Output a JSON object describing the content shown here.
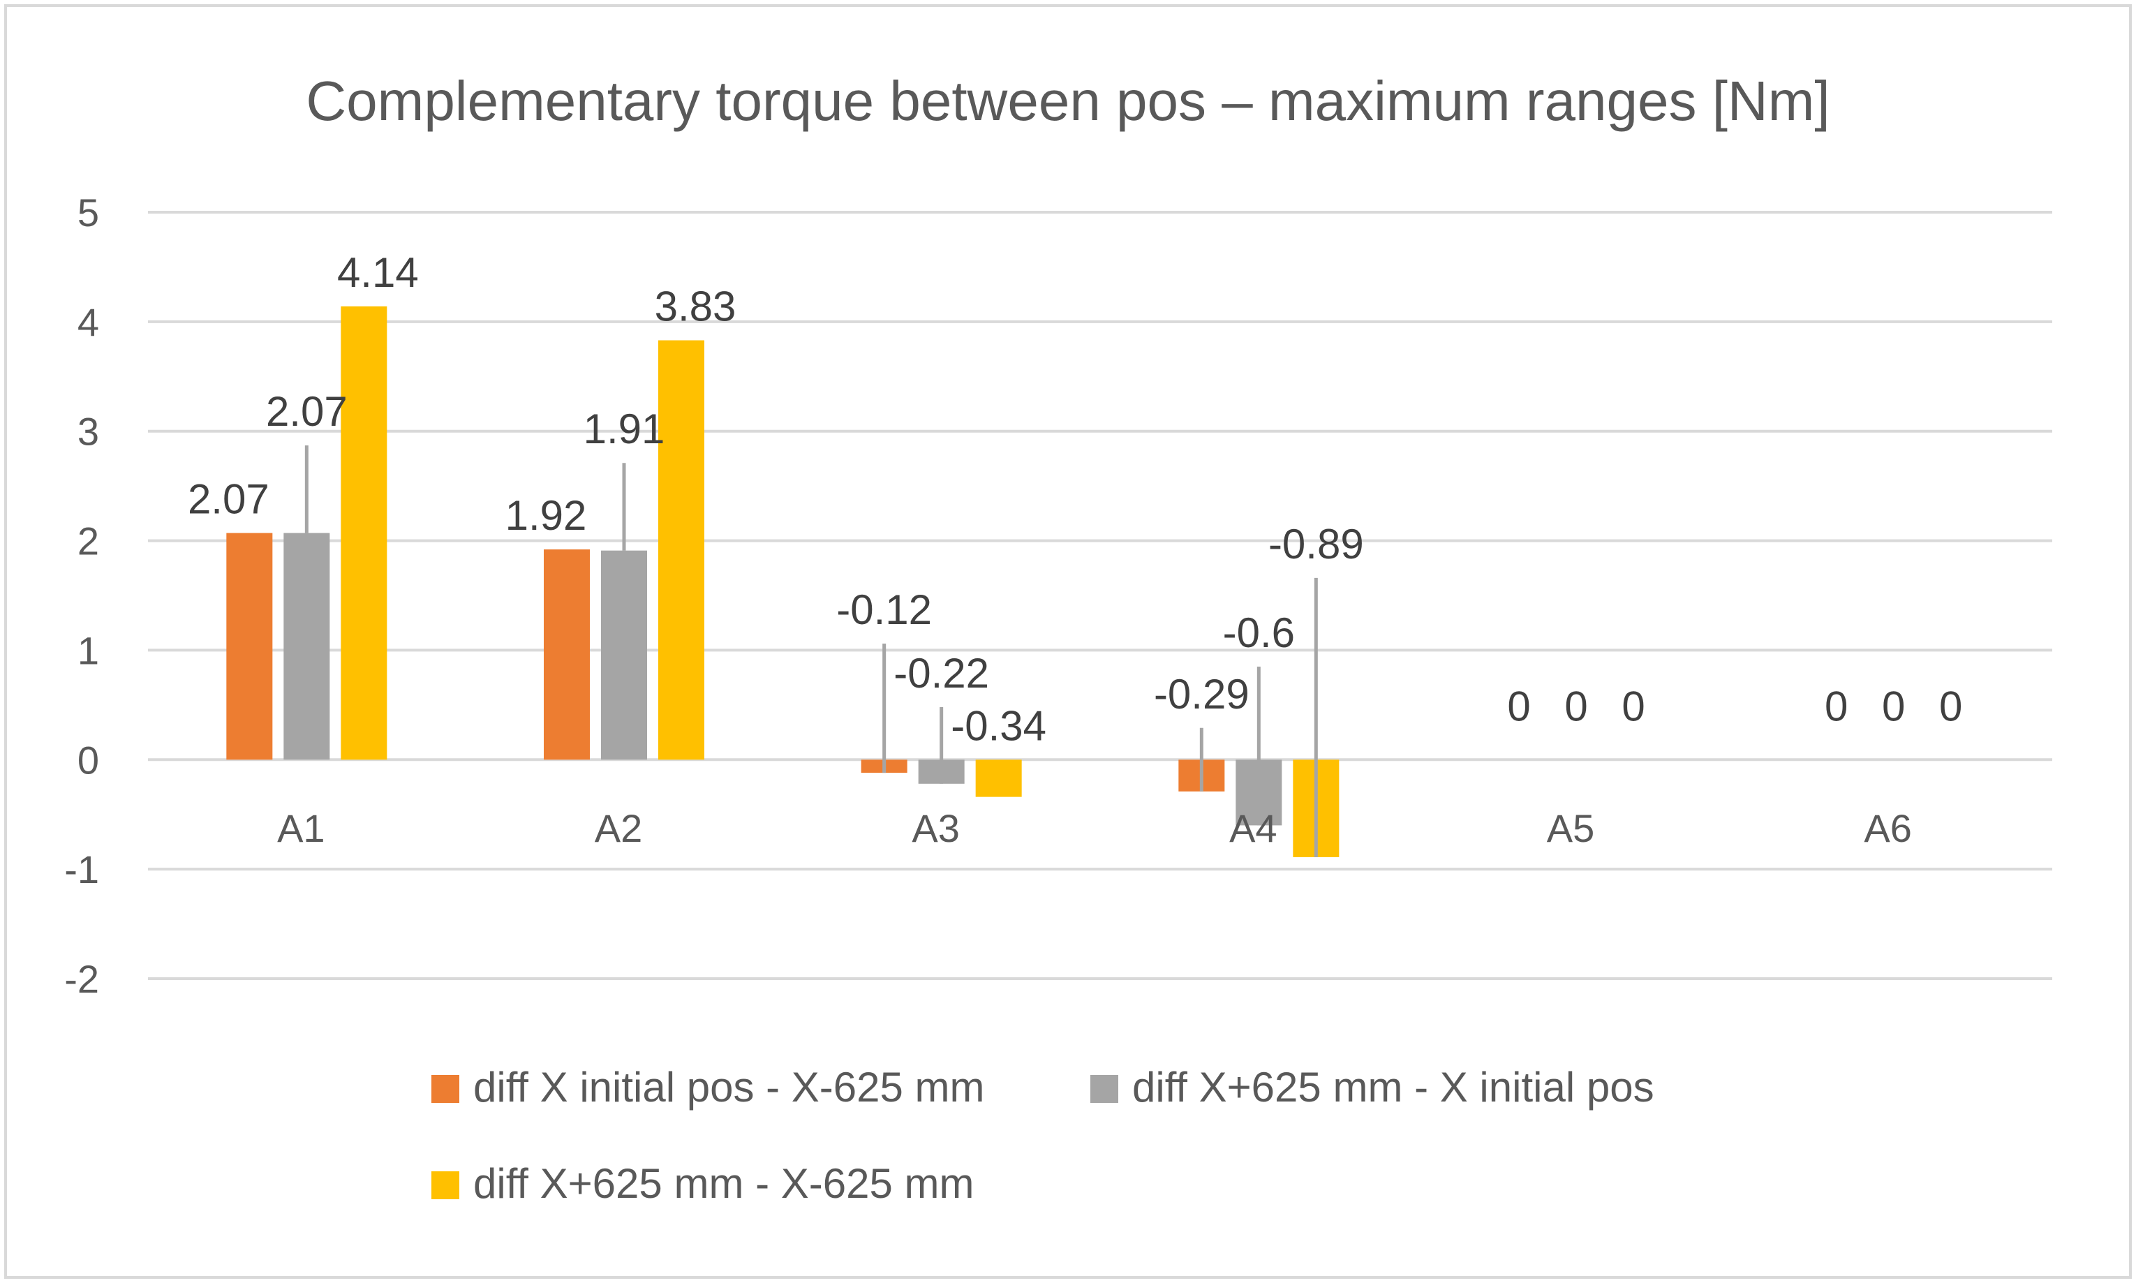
{
  "chart_data": {
    "type": "bar",
    "title": "Complementary torque between pos – maximum ranges [Nm]",
    "xlabel": "",
    "ylabel": "",
    "ylim": [
      -2,
      5
    ],
    "yticks": [
      "5",
      "4",
      "3",
      "2",
      "1",
      "0",
      "-1",
      "-2"
    ],
    "grid": true,
    "legend_position": "bottom",
    "categories": [
      "A1",
      "A2",
      "A3",
      "A4",
      "A5",
      "A6"
    ],
    "series": [
      {
        "name": "diff X initial pos - X-625 mm",
        "color": "#ED7D31",
        "values": [
          2.07,
          1.92,
          -0.12,
          -0.29,
          0,
          0
        ],
        "labels": [
          "2.07",
          "1.92",
          "-0.12",
          "-0.29",
          "0",
          "0"
        ],
        "error_plus": [
          0,
          0,
          1.18,
          0.58,
          0,
          0
        ]
      },
      {
        "name": "diff X+625 mm - X initial pos",
        "color": "#A5A5A5",
        "values": [
          2.07,
          1.91,
          -0.22,
          -0.6,
          0,
          0
        ],
        "labels": [
          "2.07",
          "1.91",
          "-0.22",
          "-0.6",
          "0",
          "0"
        ],
        "error_plus": [
          0.8,
          0.8,
          0.7,
          1.45,
          0,
          0
        ]
      },
      {
        "name": "diff X+625 mm - X-625 mm",
        "color": "#FFC000",
        "values": [
          4.14,
          3.83,
          -0.34,
          -0.89,
          0,
          0
        ],
        "labels": [
          "4.14",
          "3.83",
          "-0.34",
          "-0.89",
          "0",
          "0"
        ],
        "error_plus": [
          0,
          0,
          0,
          2.55,
          0,
          0
        ]
      }
    ]
  },
  "colors": {
    "gridline": "#D9D9D9",
    "border": "#D9D9D9",
    "error_bar": "#A5A5A5"
  }
}
